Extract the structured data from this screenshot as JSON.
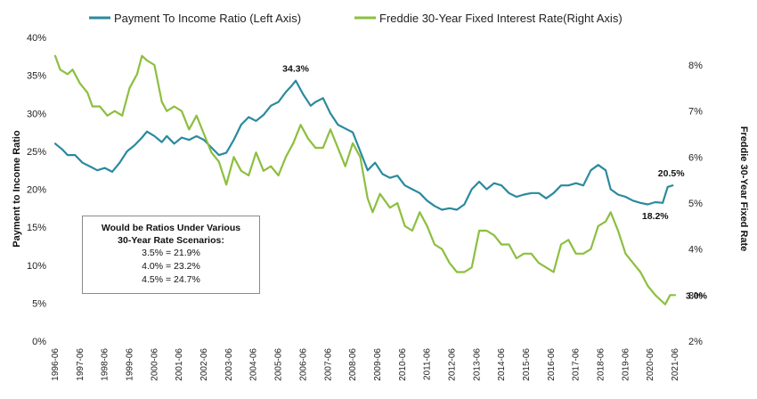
{
  "chart_data": {
    "type": "line",
    "legend": {
      "placement": "top",
      "entries": [
        {
          "label": "Payment To Income Ratio (Left Axis)",
          "color": "#2a8a9e"
        },
        {
          "label": "Freddie 30-Year Fixed Interest Rate(Right Axis)",
          "color": "#8cbf3f"
        }
      ]
    },
    "left_axis": {
      "label": "Payment to Income Ratio",
      "ylim": [
        0,
        40
      ],
      "ticks": [
        "0%",
        "5%",
        "10%",
        "15%",
        "20%",
        "25%",
        "30%",
        "35%",
        "40%"
      ]
    },
    "right_axis": {
      "label": "Freddie 30-Year Fixed Rate",
      "ylim": [
        2,
        8.6
      ],
      "ticks": [
        "2%",
        "3%",
        "4%",
        "5%",
        "6%",
        "7%",
        "8%"
      ]
    },
    "x_axis": {
      "ticks": [
        "1996-06",
        "1997-06",
        "1998-06",
        "1999-06",
        "2000-06",
        "2001-06",
        "2002-06",
        "2003-06",
        "2004-06",
        "2005-06",
        "2006-06",
        "2007-06",
        "2008-06",
        "2009-06",
        "2010-06",
        "2011-06",
        "2012-06",
        "2013-06",
        "2014-06",
        "2015-06",
        "2016-06",
        "2017-06",
        "2018-06",
        "2019-06",
        "2020-06",
        "2021-06"
      ],
      "range": [
        1996.5,
        2021.75
      ]
    },
    "grid": false,
    "series": [
      {
        "name": "Payment To Income Ratio (Left Axis)",
        "axis": "left",
        "color": "#2a8a9e",
        "x": [
          1996.5,
          1996.8,
          1997.0,
          1997.3,
          1997.6,
          1997.9,
          1998.2,
          1998.5,
          1998.8,
          1999.1,
          1999.4,
          1999.7,
          2000.0,
          2000.2,
          2000.5,
          2000.8,
          2001.0,
          2001.3,
          2001.6,
          2001.9,
          2002.2,
          2002.5,
          2002.8,
          2003.1,
          2003.4,
          2003.7,
          2004.0,
          2004.3,
          2004.6,
          2004.9,
          2005.2,
          2005.5,
          2005.8,
          2006.0,
          2006.2,
          2006.5,
          2006.8,
          2007.0,
          2007.3,
          2007.6,
          2007.9,
          2008.2,
          2008.5,
          2008.8,
          2009.1,
          2009.4,
          2009.7,
          2010.0,
          2010.3,
          2010.6,
          2010.9,
          2011.2,
          2011.5,
          2011.8,
          2012.1,
          2012.4,
          2012.7,
          2013.0,
          2013.3,
          2013.6,
          2013.9,
          2014.2,
          2014.5,
          2014.8,
          2015.1,
          2015.4,
          2015.7,
          2016.0,
          2016.3,
          2016.6,
          2016.9,
          2017.2,
          2017.5,
          2017.8,
          2018.1,
          2018.4,
          2018.7,
          2018.9,
          2019.2,
          2019.5,
          2019.8,
          2020.1,
          2020.4,
          2020.7,
          2021.0,
          2021.2,
          2021.4
        ],
        "y": [
          26.0,
          25.2,
          24.5,
          24.5,
          23.5,
          23.0,
          22.5,
          22.8,
          22.3,
          23.5,
          25.0,
          25.8,
          26.8,
          27.6,
          27.0,
          26.2,
          27.0,
          26.0,
          26.8,
          26.5,
          27.0,
          26.5,
          25.5,
          24.5,
          24.8,
          26.5,
          28.5,
          29.5,
          29.0,
          29.8,
          31.0,
          31.5,
          32.8,
          33.5,
          34.3,
          32.5,
          31.0,
          31.5,
          32.0,
          30.0,
          28.5,
          28.0,
          27.5,
          25.0,
          22.5,
          23.5,
          22.0,
          21.5,
          21.8,
          20.5,
          20.0,
          19.5,
          18.5,
          17.8,
          17.3,
          17.5,
          17.3,
          18.0,
          20.0,
          21.0,
          20.0,
          20.8,
          20.5,
          19.5,
          19.0,
          19.3,
          19.5,
          19.5,
          18.8,
          19.5,
          20.5,
          20.5,
          20.8,
          20.5,
          22.5,
          23.2,
          22.5,
          20.0,
          19.3,
          19.0,
          18.5,
          18.2,
          18.0,
          18.3,
          18.2,
          20.3,
          20.5
        ]
      },
      {
        "name": "Freddie 30-Year Fixed Interest Rate(Right Axis)",
        "axis": "right",
        "color": "#8cbf3f",
        "x": [
          1996.5,
          1996.7,
          1997.0,
          1997.2,
          1997.5,
          1997.8,
          1998.0,
          1998.3,
          1998.6,
          1998.9,
          1999.2,
          1999.5,
          1999.8,
          2000.0,
          2000.2,
          2000.5,
          2000.8,
          2001.0,
          2001.3,
          2001.6,
          2001.9,
          2002.2,
          2002.5,
          2002.8,
          2003.1,
          2003.4,
          2003.7,
          2004.0,
          2004.3,
          2004.6,
          2004.9,
          2005.2,
          2005.5,
          2005.8,
          2006.1,
          2006.4,
          2006.7,
          2007.0,
          2007.3,
          2007.6,
          2007.9,
          2008.2,
          2008.5,
          2008.8,
          2009.1,
          2009.3,
          2009.6,
          2010.0,
          2010.3,
          2010.6,
          2010.9,
          2011.2,
          2011.5,
          2011.8,
          2012.1,
          2012.4,
          2012.7,
          2013.0,
          2013.3,
          2013.6,
          2013.9,
          2014.2,
          2014.5,
          2014.8,
          2015.1,
          2015.4,
          2015.7,
          2016.0,
          2016.3,
          2016.6,
          2016.9,
          2017.2,
          2017.5,
          2017.8,
          2018.1,
          2018.4,
          2018.7,
          2018.9,
          2019.2,
          2019.5,
          2019.8,
          2020.1,
          2020.4,
          2020.7,
          2020.9,
          2021.1,
          2021.3,
          2021.5
        ],
        "y": [
          8.2,
          7.9,
          7.8,
          7.9,
          7.6,
          7.4,
          7.1,
          7.1,
          6.9,
          7.0,
          6.9,
          7.5,
          7.8,
          8.2,
          8.1,
          8.0,
          7.2,
          7.0,
          7.1,
          7.0,
          6.6,
          6.9,
          6.5,
          6.1,
          5.9,
          5.4,
          6.0,
          5.7,
          5.6,
          6.1,
          5.7,
          5.8,
          5.6,
          6.0,
          6.3,
          6.7,
          6.4,
          6.2,
          6.2,
          6.6,
          6.2,
          5.8,
          6.3,
          6.0,
          5.1,
          4.8,
          5.2,
          4.9,
          5.0,
          4.5,
          4.4,
          4.8,
          4.5,
          4.1,
          4.0,
          3.7,
          3.5,
          3.5,
          3.6,
          4.4,
          4.4,
          4.3,
          4.1,
          4.1,
          3.8,
          3.9,
          3.9,
          3.7,
          3.6,
          3.5,
          4.1,
          4.2,
          3.9,
          3.9,
          4.0,
          4.5,
          4.6,
          4.8,
          4.4,
          3.9,
          3.7,
          3.5,
          3.2,
          3.0,
          2.9,
          2.8,
          3.0,
          3.0
        ]
      }
    ],
    "annotations": [
      {
        "text": "34.3%",
        "x": 2006.2,
        "y": 34.3,
        "axis": "left",
        "position": "above"
      },
      {
        "text": "20.5%",
        "x": 2021.2,
        "y": 20.5,
        "axis": "left",
        "position": "above"
      },
      {
        "text": "18.2%",
        "x": 2020.7,
        "y": 18.2,
        "axis": "left",
        "position": "below"
      },
      {
        "text": "3.0%",
        "x": 2021.5,
        "y": 3.0,
        "axis": "right",
        "position": "right"
      }
    ],
    "scenario_box": {
      "title_line1": "Would be Ratios Under Various",
      "title_line2": "30-Year Rate Scenarios:",
      "rows": [
        "3.5% = 21.9%",
        "4.0% = 23.2%",
        "4.5% = 24.7%"
      ]
    }
  }
}
